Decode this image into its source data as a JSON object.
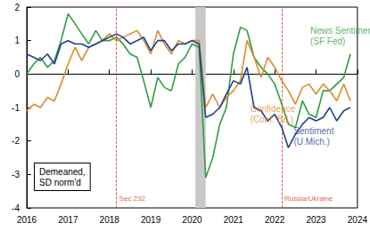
{
  "chart_data": {
    "type": "line",
    "note": "Demeaned,\nSD norm'd",
    "x": [
      2016,
      2016.17,
      2016.33,
      2016.5,
      2016.67,
      2016.83,
      2017,
      2017.17,
      2017.33,
      2017.5,
      2017.67,
      2017.83,
      2018,
      2018.17,
      2018.33,
      2018.5,
      2018.67,
      2018.83,
      2019,
      2019.17,
      2019.33,
      2019.5,
      2019.67,
      2019.83,
      2020,
      2020.17,
      2020.33,
      2020.5,
      2020.67,
      2020.83,
      2021,
      2021.17,
      2021.33,
      2021.5,
      2021.67,
      2021.83,
      2022,
      2022.17,
      2022.33,
      2022.5,
      2022.67,
      2022.83,
      2023,
      2023.17,
      2023.33,
      2023.5,
      2023.67,
      2023.83
    ],
    "series": [
      {
        "name": "News Sentiment\n(SF Fed)",
        "color": "#2e9e3e",
        "label_at": [
          2022.75,
          1.15
        ],
        "values": [
          0.0,
          0.3,
          0.5,
          0.2,
          0.4,
          1.0,
          1.8,
          1.5,
          1.2,
          0.9,
          1.3,
          1.0,
          1.0,
          1.1,
          0.9,
          0.6,
          0.5,
          -0.2,
          -1.0,
          -0.1,
          -0.4,
          -0.5,
          0.3,
          0.5,
          0.9,
          0.8,
          -3.1,
          -2.5,
          -1.5,
          -1.0,
          0.6,
          1.4,
          1.3,
          0.5,
          0.2,
          0.0,
          -0.3,
          -0.9,
          -1.5,
          -1.6,
          -0.8,
          -1.2,
          -1.3,
          -0.5,
          -0.5,
          -0.3,
          -0.1,
          0.6
        ]
      },
      {
        "name": "Confidence\n(Conf. Bd.)",
        "color": "#d98c2b",
        "label_at": [
          2021.3,
          -1.2
        ],
        "values": [
          -1.1,
          -0.9,
          -1.0,
          -0.7,
          -0.8,
          -0.3,
          0.3,
          0.8,
          0.4,
          0.8,
          0.9,
          1.0,
          1.2,
          1.0,
          1.1,
          1.2,
          1.3,
          1.0,
          0.6,
          1.3,
          0.9,
          0.6,
          1.0,
          0.9,
          1.0,
          1.0,
          -1.0,
          -0.6,
          -1.0,
          -0.7,
          -0.5,
          -0.2,
          1.0,
          0.5,
          -0.1,
          0.5,
          0.2,
          -0.2,
          -0.5,
          -0.9,
          -0.4,
          -0.3,
          -0.6,
          -0.3,
          -0.5,
          -0.8,
          -0.3,
          -0.8
        ]
      },
      {
        "name": "Sentiment\n(U.Mich.)",
        "color": "#1f3f8f",
        "label_at": [
          2022.35,
          -1.85
        ],
        "values": [
          0.6,
          0.5,
          0.4,
          0.6,
          0.3,
          0.9,
          1.0,
          0.9,
          0.9,
          0.8,
          0.9,
          1.0,
          1.1,
          1.2,
          1.1,
          0.9,
          1.0,
          1.1,
          0.7,
          1.0,
          1.0,
          0.7,
          0.9,
          0.9,
          1.0,
          0.9,
          -1.3,
          -1.2,
          -1.0,
          -0.6,
          -0.2,
          -0.3,
          0.2,
          -1.0,
          -1.1,
          -1.4,
          -1.2,
          -1.6,
          -2.2,
          -1.8,
          -1.5,
          -1.3,
          -1.4,
          -1.3,
          -1.0,
          -1.4,
          -1.1,
          -1.0
        ]
      }
    ],
    "annotations": [
      {
        "text": "Sec 232",
        "x": 2018.17,
        "label_y": -3.72,
        "color": "#e03030",
        "line_style": "dashed"
      },
      {
        "text": "Russia/Ukraine",
        "x": 2022.17,
        "label_y": -3.72,
        "color": "#e03030",
        "line_style": "dashed"
      }
    ],
    "shaded": [
      {
        "x0": 2020.08,
        "x1": 2020.33,
        "color": "#c8c8c8"
      }
    ],
    "xlim": [
      2016,
      2024
    ],
    "xticks": [
      2016,
      2017,
      2018,
      2019,
      2020,
      2021,
      2022,
      2023,
      2024
    ],
    "ylim": [
      -4,
      2
    ],
    "yticks": [
      -4,
      -3,
      -2,
      -1,
      0,
      1,
      2
    ],
    "grid": false
  }
}
